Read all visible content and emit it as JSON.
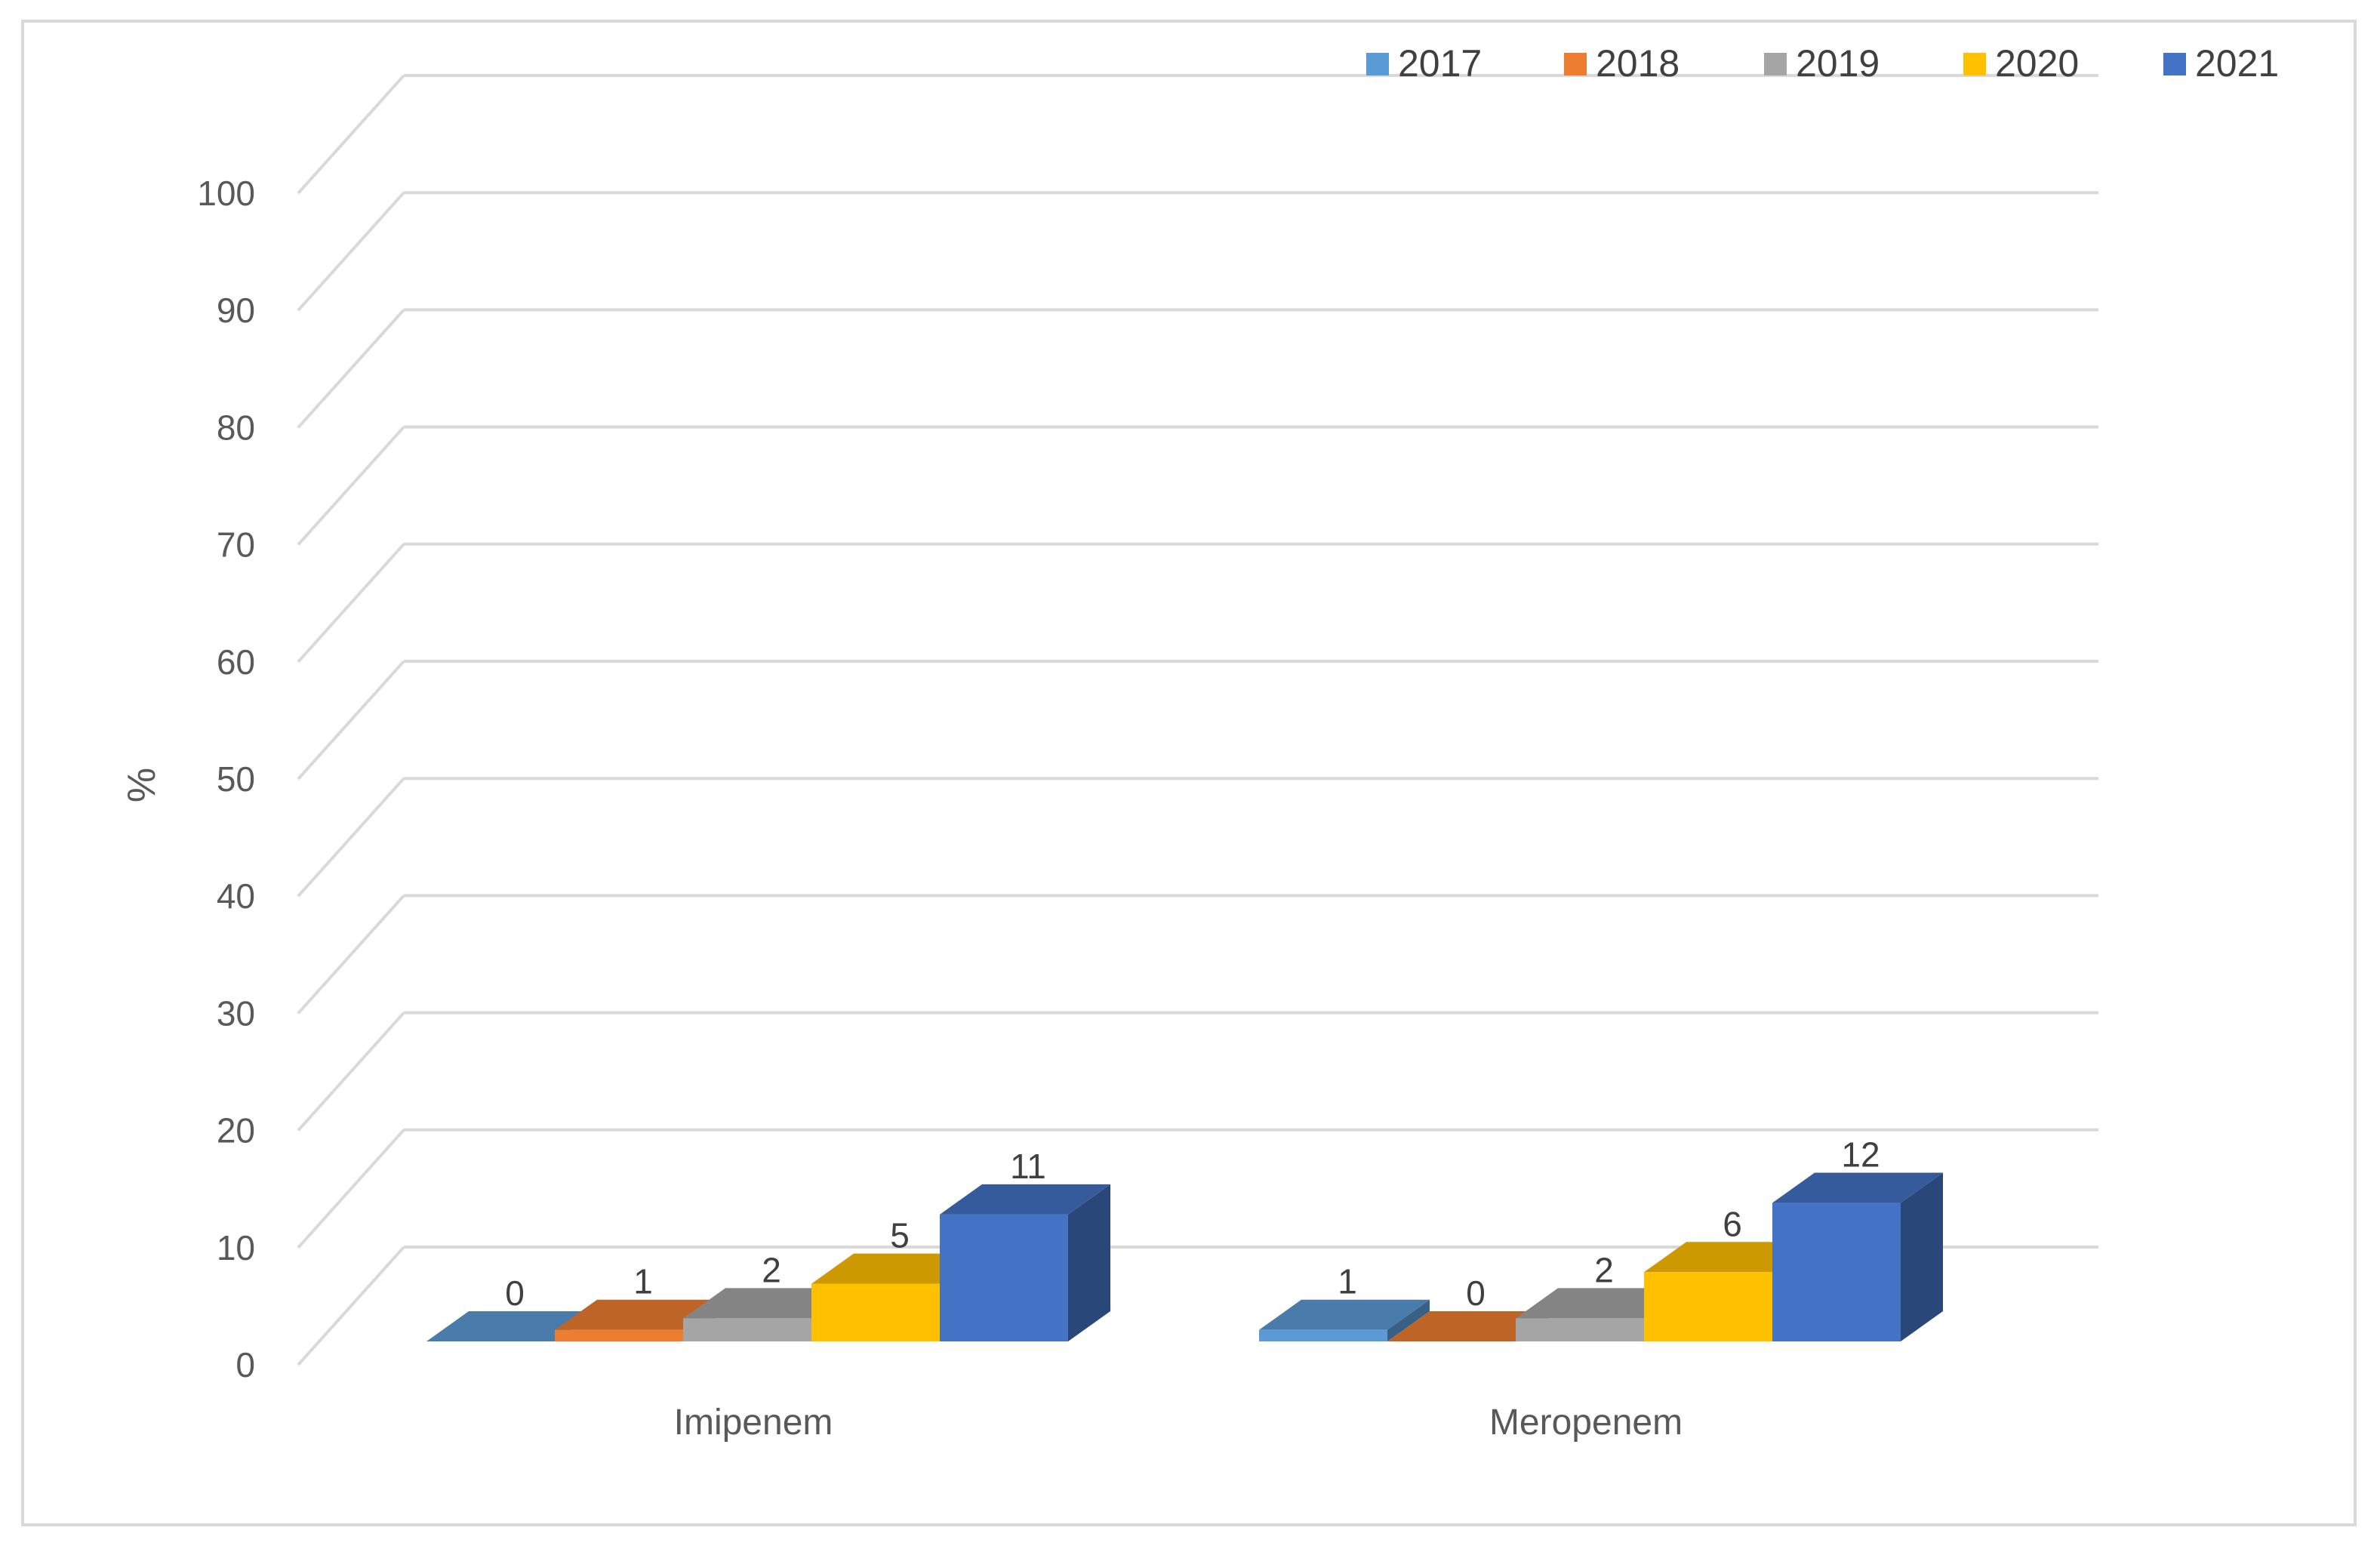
{
  "chart_data": {
    "type": "bar",
    "style": "3d-clustered-column",
    "categories": [
      "Imipenem",
      "Meropenem"
    ],
    "series": [
      {
        "name": "2017",
        "values": [
          0,
          1
        ],
        "color": "#5b9bd5"
      },
      {
        "name": "2018",
        "values": [
          1,
          0
        ],
        "color": "#ed7d31"
      },
      {
        "name": "2019",
        "values": [
          2,
          2
        ],
        "color": "#a5a5a5"
      },
      {
        "name": "2020",
        "values": [
          5,
          6
        ],
        "color": "#ffc000"
      },
      {
        "name": "2021",
        "values": [
          11,
          12
        ],
        "color": "#4472c4"
      }
    ],
    "ylabel": "%",
    "ylim": [
      0,
      100
    ],
    "yticks": [
      "0",
      "10",
      "20",
      "30",
      "40",
      "50",
      "60",
      "70",
      "80",
      "90",
      "100"
    ],
    "grid": true,
    "legend_position": "top-right",
    "data_labels": true
  }
}
